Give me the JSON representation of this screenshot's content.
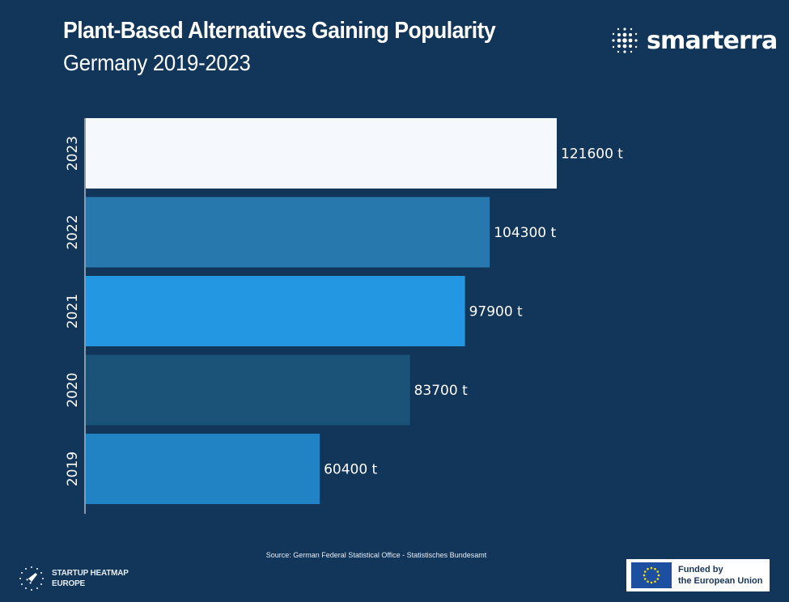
{
  "header": {
    "title": "Plant-Based Alternatives Gaining Popularity",
    "subtitle": "Germany 2019-2023"
  },
  "brand": {
    "name": "smarterra",
    "logo_icon": "dot-grid-icon"
  },
  "chart_data": {
    "type": "bar",
    "orientation": "horizontal",
    "title": "Plant-Based Alternatives Gaining Popularity",
    "subtitle": "Germany 2019-2023",
    "categories": [
      "2023",
      "2022",
      "2021",
      "2020",
      "2019"
    ],
    "values": [
      121600,
      104300,
      97900,
      83700,
      60400
    ],
    "data_labels": [
      "121600 t",
      "104300 t",
      "97900 t",
      "83700 t",
      "60400 t"
    ],
    "colors": [
      "#f5f9fd",
      "#2779ad",
      "#2497e3",
      "#1b5378",
      "#2182c4"
    ],
    "xlim": [
      0,
      121600
    ],
    "grid": false,
    "legend": "none"
  },
  "footer": {
    "source": "Source: German Federal Statistical Office - Statistisches Bundesamt",
    "heatmap_line1": "STARTUP HEATMAP",
    "heatmap_line2": "EUROPE",
    "eu_line1": "Funded by",
    "eu_line2": "the European Union"
  }
}
